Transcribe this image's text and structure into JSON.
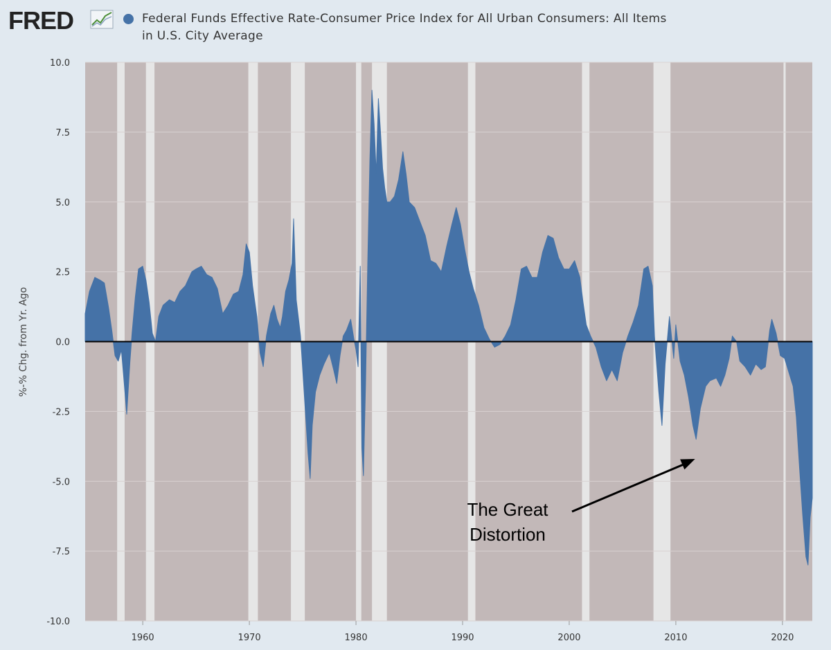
{
  "header": {
    "logo_text": "FRED",
    "logo_icon": "line-chart-icon",
    "series_title_line1": "Federal Funds Effective Rate-Consumer Price Index for All Urban Consumers: All Items",
    "series_title_line2": "in U.S. City Average",
    "series_color": "#4572a7"
  },
  "chart_data": {
    "type": "area",
    "title": "Federal Funds Effective Rate-Consumer Price Index for All Urban Consumers: All Items in U.S. City Average",
    "ylabel": "%-% Chg. from Yr. Ago",
    "xlabel": "",
    "xlim": [
      1954.6,
      2022.8
    ],
    "ylim": [
      -10,
      10
    ],
    "y_ticks": [
      "10.0",
      "7.5",
      "5.0",
      "2.5",
      "0.0",
      "-2.5",
      "-5.0",
      "-7.5",
      "-10.0"
    ],
    "x_ticks": [
      "1960",
      "1970",
      "1980",
      "1990",
      "2000",
      "2010",
      "2020"
    ],
    "grid": true,
    "colors": {
      "series": "#4572a7",
      "plot_background": "#c2b8b8",
      "recession_shading": "#e6e6e6",
      "zero_line": "#000000",
      "page_background": "#e1e9f0"
    },
    "series": [
      {
        "name": "Federal Funds Effective Rate-Consumer Price Index for All Urban Consumers: All Items in U.S. City Average",
        "points": [
          [
            1954.6,
            1.0
          ],
          [
            1955.0,
            1.8
          ],
          [
            1955.5,
            2.3
          ],
          [
            1956.0,
            2.2
          ],
          [
            1956.4,
            2.1
          ],
          [
            1956.8,
            1.2
          ],
          [
            1957.1,
            0.4
          ],
          [
            1957.4,
            -0.5
          ],
          [
            1957.7,
            -0.7
          ],
          [
            1958.0,
            -0.3
          ],
          [
            1958.2,
            -1.2
          ],
          [
            1958.5,
            -2.6
          ],
          [
            1958.8,
            -0.7
          ],
          [
            1959.0,
            0.3
          ],
          [
            1959.3,
            1.6
          ],
          [
            1959.6,
            2.6
          ],
          [
            1960.0,
            2.7
          ],
          [
            1960.3,
            2.2
          ],
          [
            1960.6,
            1.4
          ],
          [
            1960.9,
            0.3
          ],
          [
            1961.2,
            0.0
          ],
          [
            1961.5,
            0.9
          ],
          [
            1961.9,
            1.3
          ],
          [
            1962.5,
            1.5
          ],
          [
            1963.0,
            1.4
          ],
          [
            1963.5,
            1.8
          ],
          [
            1964.0,
            2.0
          ],
          [
            1964.6,
            2.5
          ],
          [
            1965.0,
            2.6
          ],
          [
            1965.5,
            2.7
          ],
          [
            1966.0,
            2.4
          ],
          [
            1966.5,
            2.3
          ],
          [
            1967.0,
            1.9
          ],
          [
            1967.5,
            1.0
          ],
          [
            1968.0,
            1.3
          ],
          [
            1968.5,
            1.7
          ],
          [
            1969.0,
            1.8
          ],
          [
            1969.4,
            2.4
          ],
          [
            1969.7,
            3.5
          ],
          [
            1970.0,
            3.2
          ],
          [
            1970.3,
            2.0
          ],
          [
            1970.7,
            0.9
          ],
          [
            1971.0,
            -0.4
          ],
          [
            1971.3,
            -0.9
          ],
          [
            1971.6,
            0.2
          ],
          [
            1972.0,
            1.0
          ],
          [
            1972.3,
            1.3
          ],
          [
            1972.6,
            0.8
          ],
          [
            1972.9,
            0.5
          ],
          [
            1973.1,
            0.9
          ],
          [
            1973.4,
            1.8
          ],
          [
            1973.7,
            2.2
          ],
          [
            1974.0,
            2.8
          ],
          [
            1974.15,
            4.4
          ],
          [
            1974.4,
            1.5
          ],
          [
            1974.8,
            0.2
          ],
          [
            1975.0,
            -1.0
          ],
          [
            1975.3,
            -2.8
          ],
          [
            1975.5,
            -4.0
          ],
          [
            1975.7,
            -4.9
          ],
          [
            1975.9,
            -3.0
          ],
          [
            1976.2,
            -1.8
          ],
          [
            1976.6,
            -1.2
          ],
          [
            1977.0,
            -0.8
          ],
          [
            1977.5,
            -0.4
          ],
          [
            1977.9,
            -1.0
          ],
          [
            1978.2,
            -1.5
          ],
          [
            1978.5,
            -0.5
          ],
          [
            1978.8,
            0.2
          ],
          [
            1979.1,
            0.4
          ],
          [
            1979.5,
            0.8
          ],
          [
            1979.8,
            0.1
          ],
          [
            1980.0,
            -0.3
          ],
          [
            1980.2,
            -0.9
          ],
          [
            1980.4,
            2.7
          ],
          [
            1980.55,
            -3.8
          ],
          [
            1980.7,
            -4.8
          ],
          [
            1980.9,
            -1.5
          ],
          [
            1981.1,
            2.8
          ],
          [
            1981.3,
            6.5
          ],
          [
            1981.5,
            9.0
          ],
          [
            1981.7,
            7.8
          ],
          [
            1981.9,
            6.0
          ],
          [
            1982.1,
            8.7
          ],
          [
            1982.3,
            7.5
          ],
          [
            1982.5,
            6.2
          ],
          [
            1982.7,
            5.5
          ],
          [
            1982.9,
            5.0
          ],
          [
            1983.2,
            5.0
          ],
          [
            1983.6,
            5.2
          ],
          [
            1984.0,
            5.8
          ],
          [
            1984.4,
            6.8
          ],
          [
            1984.7,
            6.0
          ],
          [
            1985.0,
            5.0
          ],
          [
            1985.5,
            4.8
          ],
          [
            1986.0,
            4.3
          ],
          [
            1986.5,
            3.8
          ],
          [
            1987.0,
            2.9
          ],
          [
            1987.5,
            2.8
          ],
          [
            1988.0,
            2.5
          ],
          [
            1988.5,
            3.4
          ],
          [
            1989.0,
            4.2
          ],
          [
            1989.4,
            4.8
          ],
          [
            1989.8,
            4.2
          ],
          [
            1990.2,
            3.3
          ],
          [
            1990.6,
            2.5
          ],
          [
            1991.0,
            1.9
          ],
          [
            1991.5,
            1.3
          ],
          [
            1992.0,
            0.5
          ],
          [
            1992.5,
            0.1
          ],
          [
            1993.0,
            -0.2
          ],
          [
            1993.5,
            -0.1
          ],
          [
            1994.0,
            0.2
          ],
          [
            1994.5,
            0.6
          ],
          [
            1995.0,
            1.5
          ],
          [
            1995.5,
            2.6
          ],
          [
            1996.0,
            2.7
          ],
          [
            1996.5,
            2.3
          ],
          [
            1997.0,
            2.3
          ],
          [
            1997.5,
            3.2
          ],
          [
            1998.0,
            3.8
          ],
          [
            1998.5,
            3.7
          ],
          [
            1999.0,
            3.0
          ],
          [
            1999.5,
            2.6
          ],
          [
            2000.0,
            2.6
          ],
          [
            2000.5,
            2.9
          ],
          [
            2001.0,
            2.3
          ],
          [
            2001.3,
            1.4
          ],
          [
            2001.6,
            0.6
          ],
          [
            2002.0,
            0.2
          ],
          [
            2002.5,
            -0.2
          ],
          [
            2003.0,
            -0.9
          ],
          [
            2003.5,
            -1.4
          ],
          [
            2004.0,
            -1.0
          ],
          [
            2004.5,
            -1.4
          ],
          [
            2005.0,
            -0.4
          ],
          [
            2005.5,
            0.2
          ],
          [
            2006.0,
            0.7
          ],
          [
            2006.5,
            1.3
          ],
          [
            2007.0,
            2.6
          ],
          [
            2007.4,
            2.7
          ],
          [
            2007.8,
            2.0
          ],
          [
            2008.0,
            0.2
          ],
          [
            2008.4,
            -1.8
          ],
          [
            2008.7,
            -3.0
          ],
          [
            2009.0,
            -0.8
          ],
          [
            2009.4,
            0.9
          ],
          [
            2009.8,
            -0.6
          ],
          [
            2010.0,
            0.6
          ],
          [
            2010.4,
            -0.7
          ],
          [
            2010.8,
            -1.2
          ],
          [
            2011.2,
            -2.0
          ],
          [
            2011.6,
            -3.0
          ],
          [
            2011.9,
            -3.5
          ],
          [
            2012.3,
            -2.4
          ],
          [
            2012.8,
            -1.6
          ],
          [
            2013.2,
            -1.4
          ],
          [
            2013.8,
            -1.3
          ],
          [
            2014.2,
            -1.6
          ],
          [
            2014.6,
            -1.2
          ],
          [
            2015.0,
            -0.6
          ],
          [
            2015.3,
            0.2
          ],
          [
            2015.7,
            0.0
          ],
          [
            2016.0,
            -0.7
          ],
          [
            2016.5,
            -0.9
          ],
          [
            2017.0,
            -1.2
          ],
          [
            2017.5,
            -0.8
          ],
          [
            2018.0,
            -1.0
          ],
          [
            2018.4,
            -0.9
          ],
          [
            2018.8,
            0.4
          ],
          [
            2019.0,
            0.8
          ],
          [
            2019.4,
            0.3
          ],
          [
            2019.8,
            -0.5
          ],
          [
            2020.2,
            -0.6
          ],
          [
            2020.6,
            -1.1
          ],
          [
            2021.0,
            -1.6
          ],
          [
            2021.3,
            -2.7
          ],
          [
            2021.6,
            -4.5
          ],
          [
            2021.9,
            -6.2
          ],
          [
            2022.2,
            -7.7
          ],
          [
            2022.4,
            -8.0
          ],
          [
            2022.6,
            -6.3
          ],
          [
            2022.8,
            -5.6
          ]
        ]
      }
    ],
    "recessions": [
      [
        1957.6,
        1958.3
      ],
      [
        1960.3,
        1961.1
      ],
      [
        1969.9,
        1970.8
      ],
      [
        1973.9,
        1975.2
      ],
      [
        1980.0,
        1980.5
      ],
      [
        1981.5,
        1982.9
      ],
      [
        1990.5,
        1991.2
      ],
      [
        2001.2,
        2001.9
      ],
      [
        2007.9,
        2009.5
      ],
      [
        2020.1,
        2020.3
      ]
    ],
    "annotations": [
      {
        "text_lines": [
          "The Great",
          "Distortion"
        ],
        "arrow_to": [
          2011.8,
          -4.2
        ]
      }
    ]
  }
}
